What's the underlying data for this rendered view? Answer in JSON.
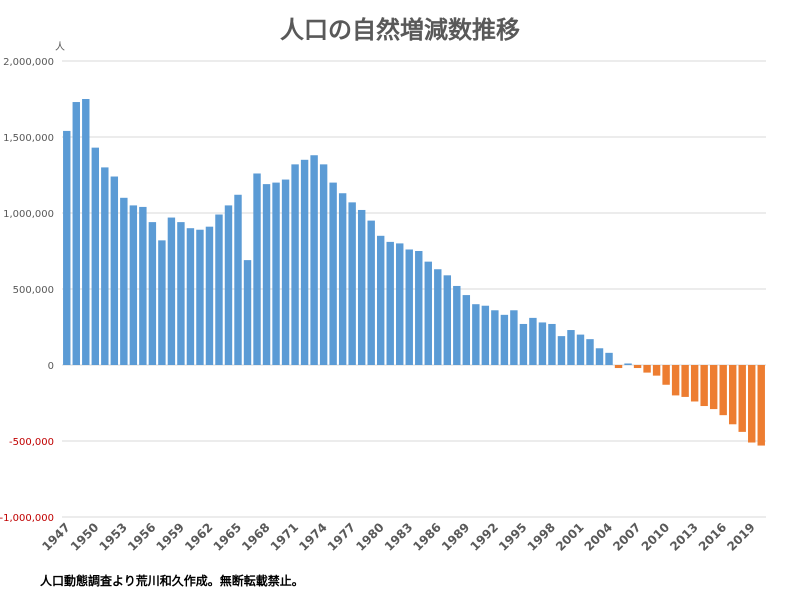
{
  "chart_data": {
    "type": "bar",
    "title": "人口の自然増減数推移",
    "ylabel": "人",
    "xlabel": "",
    "ylim": [
      -1000000,
      2000000
    ],
    "y_ticks": [
      {
        "value": 2000000,
        "label": "2,000,000"
      },
      {
        "value": 1500000,
        "label": "1,500,000"
      },
      {
        "value": 1000000,
        "label": "1,000,000"
      },
      {
        "value": 500000,
        "label": "500,000"
      },
      {
        "value": 0,
        "label": "0"
      },
      {
        "value": -500000,
        "label": "-500,000"
      },
      {
        "value": -1000000,
        "label": "-1,000,000"
      }
    ],
    "x_tick_labels": [
      "1947",
      "1950",
      "1953",
      "1956",
      "1959",
      "1962",
      "1965",
      "1968",
      "1971",
      "1974",
      "1977",
      "1980",
      "1983",
      "1986",
      "1989",
      "1992",
      "1995",
      "1998",
      "2001",
      "2004",
      "2007",
      "2010",
      "2013",
      "2016",
      "2019"
    ],
    "grid": true,
    "legend": "none",
    "colors": {
      "positive": "#5B9BD5",
      "negative": "#ED7D31",
      "negative_tick": "#C00000",
      "grid": "#D9D9D9",
      "axis_text": "#595959"
    },
    "categories": [
      "1947",
      "1948",
      "1949",
      "1950",
      "1951",
      "1952",
      "1953",
      "1954",
      "1955",
      "1956",
      "1957",
      "1958",
      "1959",
      "1960",
      "1961",
      "1962",
      "1963",
      "1964",
      "1965",
      "1966",
      "1967",
      "1968",
      "1969",
      "1970",
      "1971",
      "1972",
      "1973",
      "1974",
      "1975",
      "1976",
      "1977",
      "1978",
      "1979",
      "1980",
      "1981",
      "1982",
      "1983",
      "1984",
      "1985",
      "1986",
      "1987",
      "1988",
      "1989",
      "1990",
      "1991",
      "1992",
      "1993",
      "1994",
      "1995",
      "1996",
      "1997",
      "1998",
      "1999",
      "2000",
      "2001",
      "2002",
      "2003",
      "2004",
      "2005",
      "2006",
      "2007",
      "2008",
      "2009",
      "2010",
      "2011",
      "2012",
      "2013",
      "2014",
      "2015",
      "2016",
      "2017",
      "2018",
      "2019",
      "2020"
    ],
    "values": [
      1540000,
      1730000,
      1750000,
      1430000,
      1300000,
      1240000,
      1100000,
      1050000,
      1040000,
      940000,
      820000,
      970000,
      940000,
      900000,
      890000,
      910000,
      990000,
      1050000,
      1120000,
      690000,
      1260000,
      1190000,
      1200000,
      1220000,
      1320000,
      1350000,
      1380000,
      1320000,
      1200000,
      1130000,
      1070000,
      1020000,
      950000,
      850000,
      810000,
      800000,
      760000,
      750000,
      680000,
      630000,
      590000,
      520000,
      460000,
      400000,
      390000,
      360000,
      330000,
      360000,
      270000,
      310000,
      280000,
      270000,
      190000,
      230000,
      200000,
      170000,
      110000,
      80000,
      -20000,
      10000,
      -20000,
      -50000,
      -70000,
      -130000,
      -200000,
      -210000,
      -240000,
      -270000,
      -290000,
      -330000,
      -390000,
      -440000,
      -510000,
      -530000
    ]
  },
  "footer": {
    "source_note": "人口動態調査より荒川和久作成。無断転載禁止。"
  }
}
